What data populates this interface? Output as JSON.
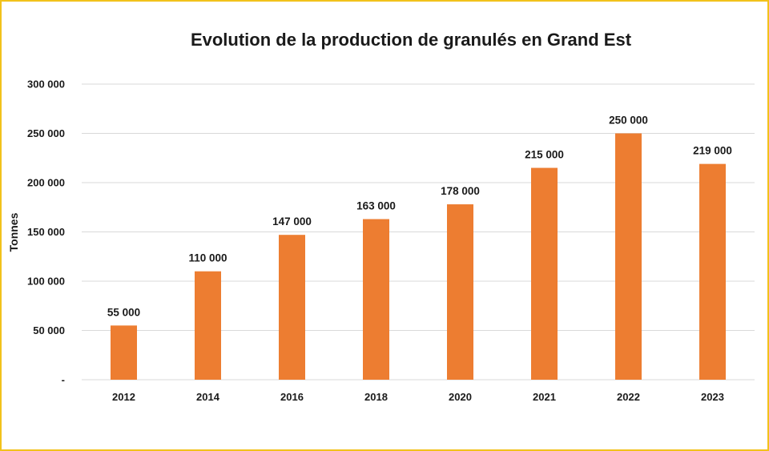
{
  "chart_data": {
    "type": "bar",
    "title": "Evolution de la production de granulés en Grand Est",
    "xlabel": "",
    "ylabel": "Tonnes",
    "categories": [
      "2012",
      "2014",
      "2016",
      "2018",
      "2020",
      "2021",
      "2022",
      "2023"
    ],
    "values": [
      55000,
      110000,
      147000,
      163000,
      178000,
      215000,
      250000,
      219000
    ],
    "data_labels": [
      "55 000",
      "110 000",
      "147 000",
      "163 000",
      "178 000",
      "215 000",
      "250 000",
      "219 000"
    ],
    "ylim": [
      0,
      300000
    ],
    "yticks": [
      0,
      50000,
      100000,
      150000,
      200000,
      250000,
      300000
    ],
    "ytick_labels": [
      "-",
      "50 000",
      "100 000",
      "150 000",
      "200 000",
      "250 000",
      "300 000"
    ],
    "grid": true,
    "legend": "none",
    "bar_color": "#ed7d31",
    "gridline_color": "#d9d9d9",
    "frame_color": "#f2c21b"
  }
}
